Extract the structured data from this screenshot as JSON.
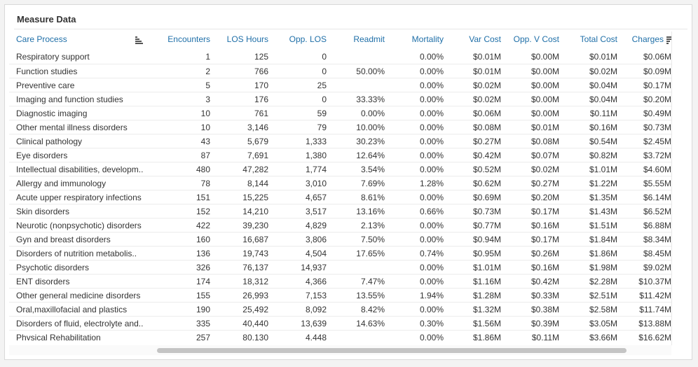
{
  "panel": {
    "title": "Measure Data"
  },
  "columns": [
    {
      "key": "care",
      "label": "Care Process"
    },
    {
      "key": "enc",
      "label": "Encounters"
    },
    {
      "key": "los",
      "label": "LOS Hours"
    },
    {
      "key": "opp",
      "label": "Opp. LOS"
    },
    {
      "key": "readmit",
      "label": "Readmit"
    },
    {
      "key": "mort",
      "label": "Mortality"
    },
    {
      "key": "var",
      "label": "Var Cost"
    },
    {
      "key": "oppv",
      "label": "Opp. V Cost"
    },
    {
      "key": "total",
      "label": "Total Cost"
    },
    {
      "key": "charges",
      "label": "Charges"
    }
  ],
  "rows": [
    [
      "Respiratory support",
      "1",
      "125",
      "0",
      "",
      "0.00%",
      "$0.01M",
      "$0.00M",
      "$0.01M",
      "$0.06M"
    ],
    [
      "Function studies",
      "2",
      "766",
      "0",
      "50.00%",
      "0.00%",
      "$0.01M",
      "$0.00M",
      "$0.02M",
      "$0.09M"
    ],
    [
      "Preventive care",
      "5",
      "170",
      "25",
      "",
      "0.00%",
      "$0.02M",
      "$0.00M",
      "$0.04M",
      "$0.17M"
    ],
    [
      "Imaging and function studies",
      "3",
      "176",
      "0",
      "33.33%",
      "0.00%",
      "$0.02M",
      "$0.00M",
      "$0.04M",
      "$0.20M"
    ],
    [
      "Diagnostic imaging",
      "10",
      "761",
      "59",
      "0.00%",
      "0.00%",
      "$0.06M",
      "$0.00M",
      "$0.11M",
      "$0.49M"
    ],
    [
      "Other mental illness disorders",
      "10",
      "3,146",
      "79",
      "10.00%",
      "0.00%",
      "$0.08M",
      "$0.01M",
      "$0.16M",
      "$0.73M"
    ],
    [
      "Clinical pathology",
      "43",
      "5,679",
      "1,333",
      "30.23%",
      "0.00%",
      "$0.27M",
      "$0.08M",
      "$0.54M",
      "$2.45M"
    ],
    [
      "Eye disorders",
      "87",
      "7,691",
      "1,380",
      "12.64%",
      "0.00%",
      "$0.42M",
      "$0.07M",
      "$0.82M",
      "$3.72M"
    ],
    [
      "Intellectual disabilities, developm..",
      "480",
      "47,282",
      "1,774",
      "3.54%",
      "0.00%",
      "$0.52M",
      "$0.02M",
      "$1.01M",
      "$4.60M"
    ],
    [
      "Allergy and immunology",
      "78",
      "8,144",
      "3,010",
      "7.69%",
      "1.28%",
      "$0.62M",
      "$0.27M",
      "$1.22M",
      "$5.55M"
    ],
    [
      "Acute upper respiratory infections",
      "151",
      "15,225",
      "4,657",
      "8.61%",
      "0.00%",
      "$0.69M",
      "$0.20M",
      "$1.35M",
      "$6.14M"
    ],
    [
      "Skin disorders",
      "152",
      "14,210",
      "3,517",
      "13.16%",
      "0.66%",
      "$0.73M",
      "$0.17M",
      "$1.43M",
      "$6.52M"
    ],
    [
      "Neurotic (nonpsychotic) disorders",
      "422",
      "39,230",
      "4,829",
      "2.13%",
      "0.00%",
      "$0.77M",
      "$0.16M",
      "$1.51M",
      "$6.88M"
    ],
    [
      "Gyn and breast disorders",
      "160",
      "16,687",
      "3,806",
      "7.50%",
      "0.00%",
      "$0.94M",
      "$0.17M",
      "$1.84M",
      "$8.34M"
    ],
    [
      "Disorders of nutrition metabolis..",
      "136",
      "19,743",
      "4,504",
      "17.65%",
      "0.74%",
      "$0.95M",
      "$0.26M",
      "$1.86M",
      "$8.45M"
    ],
    [
      "Psychotic disorders",
      "326",
      "76,137",
      "14,937",
      "",
      "0.00%",
      "$1.01M",
      "$0.16M",
      "$1.98M",
      "$9.02M"
    ],
    [
      "ENT disorders",
      "174",
      "18,312",
      "4,366",
      "7.47%",
      "0.00%",
      "$1.16M",
      "$0.42M",
      "$2.28M",
      "$10.37M"
    ],
    [
      "Other general medicine disorders",
      "155",
      "26,993",
      "7,153",
      "13.55%",
      "1.94%",
      "$1.28M",
      "$0.33M",
      "$2.51M",
      "$11.42M"
    ],
    [
      "Oral,maxillofacial and plastics",
      "190",
      "25,492",
      "8,092",
      "8.42%",
      "0.00%",
      "$1.32M",
      "$0.38M",
      "$2.58M",
      "$11.74M"
    ],
    [
      "Disorders of fluid, electrolyte and..",
      "335",
      "40,440",
      "13,639",
      "14.63%",
      "0.30%",
      "$1.56M",
      "$0.39M",
      "$3.05M",
      "$13.88M"
    ],
    [
      "Physical Rehabilitation",
      "257",
      "80,130",
      "4,448",
      "",
      "0.00%",
      "$1.86M",
      "$0.11M",
      "$3.66M",
      "$16.62M"
    ]
  ]
}
